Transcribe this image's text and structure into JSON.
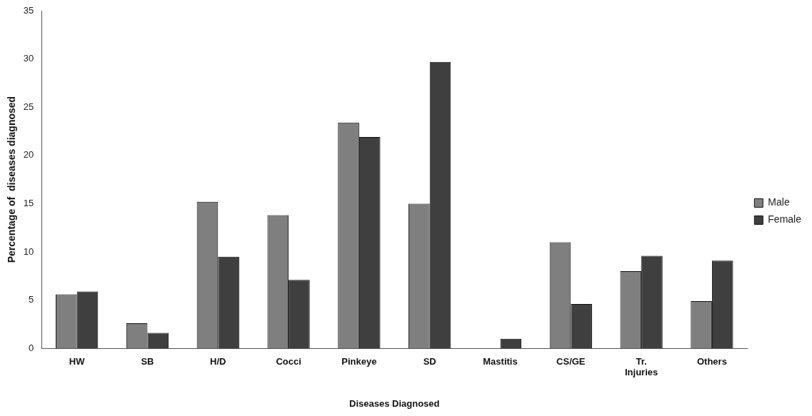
{
  "chart_data": {
    "type": "bar",
    "xlabel": "Diseases Diagnosed",
    "ylabel": "Percentage of  diseases diagnosed",
    "categories": [
      "HW",
      "SB",
      "H/D",
      "Cocci",
      "Pinkeye",
      "SD",
      "Mastitis",
      "CS/GE",
      "Tr. Injuries",
      "Others"
    ],
    "series": [
      {
        "name": "Male",
        "color": "#7f7f7f",
        "values": [
          5.6,
          2.6,
          15.2,
          13.8,
          23.4,
          15.0,
          0,
          11.0,
          8.0,
          4.9
        ]
      },
      {
        "name": "Female",
        "color": "#3f3f3f",
        "values": [
          5.9,
          1.6,
          9.5,
          7.1,
          21.9,
          29.7,
          1.0,
          4.6,
          9.6,
          9.1
        ]
      }
    ],
    "ylim": [
      0,
      35
    ],
    "yticks": [
      0,
      5,
      10,
      15,
      20,
      25,
      30,
      35
    ],
    "grid": false,
    "legend": "right"
  }
}
